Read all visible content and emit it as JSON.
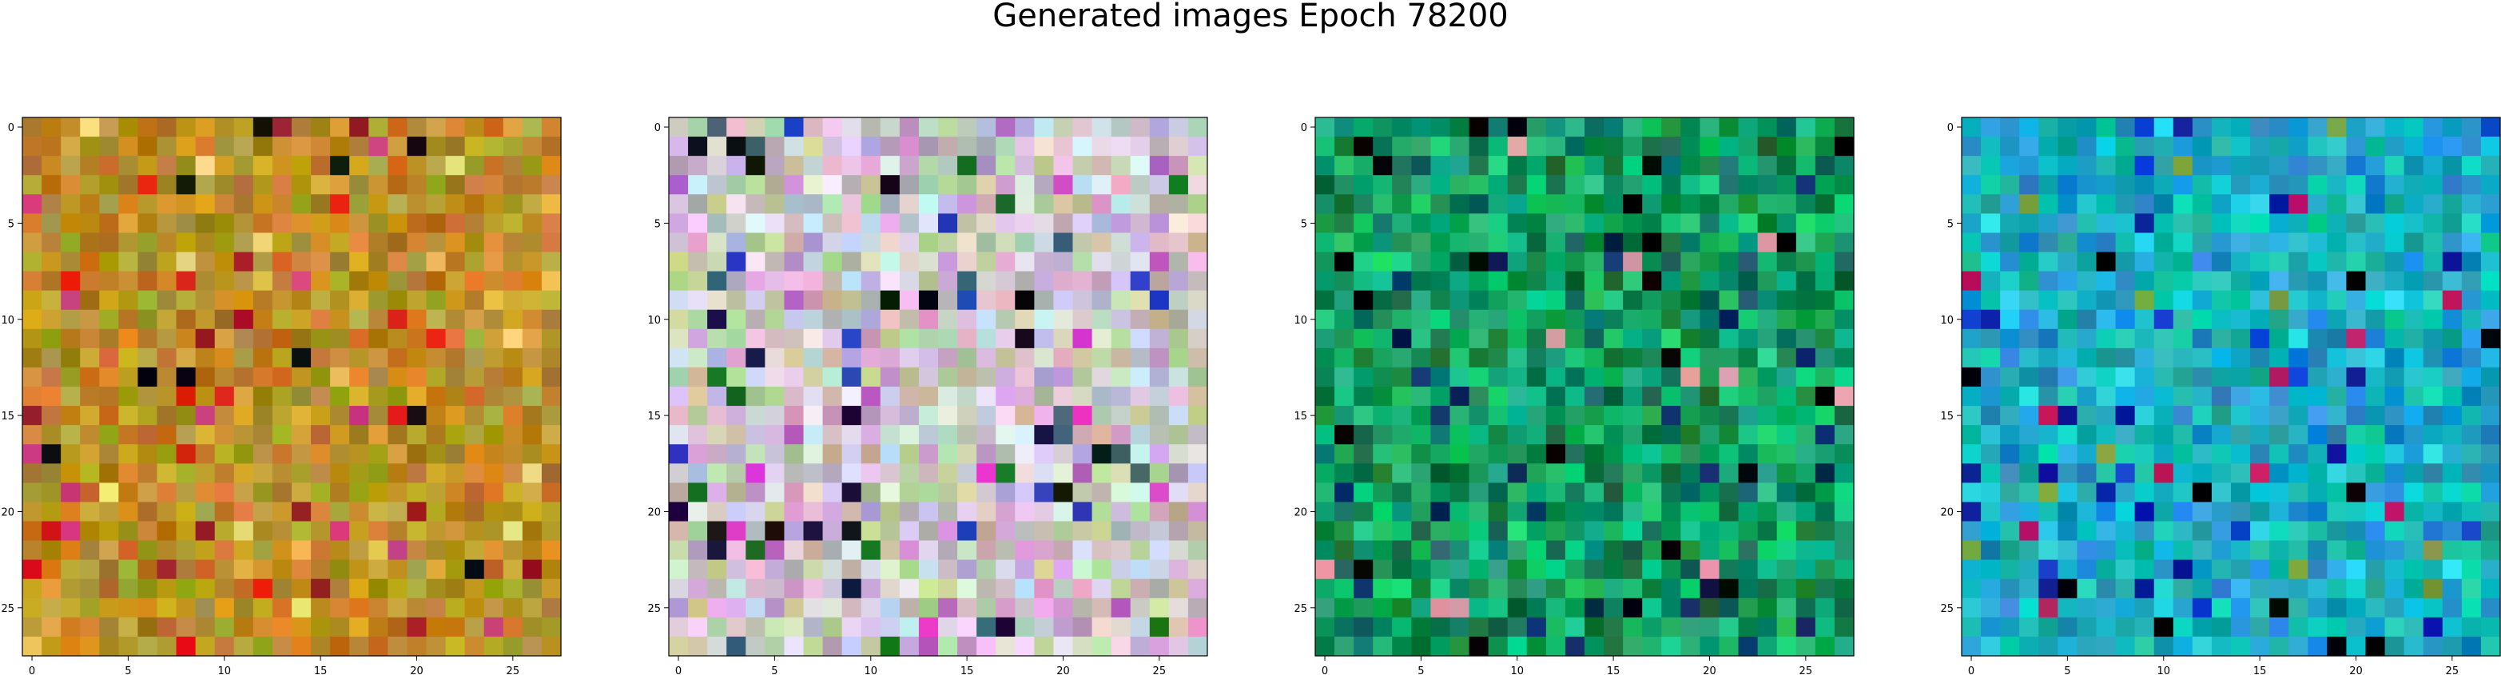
{
  "title": "Generated images Epoch 78200",
  "chart_data": [
    {
      "type": "heatmap",
      "image_size": 28,
      "color_scheme": "warm-ochre",
      "base_colors": [
        "#b0801c",
        "#c99a2e",
        "#d39230",
        "#a89020",
        "#c47a26",
        "#b7a03a"
      ],
      "accent_colors": [
        "#a01828",
        "#e8c050",
        "#8c9a18",
        "#101008",
        "#d0407a",
        "#f0e080",
        "#e01810"
      ],
      "xlim": [
        -0.5,
        27.5
      ],
      "ylim": [
        27.5,
        -0.5
      ],
      "x_ticks": [
        0,
        5,
        10,
        15,
        20,
        25
      ],
      "y_ticks": [
        0,
        5,
        10,
        15,
        20,
        25
      ],
      "x_tick_labels": [
        "0",
        "5",
        "10",
        "15",
        "20",
        "25"
      ],
      "y_tick_labels": [
        "0",
        "5",
        "10",
        "15",
        "20",
        "25"
      ]
    },
    {
      "type": "heatmap",
      "image_size": 28,
      "color_scheme": "pastel-mixed",
      "base_colors": [
        "#d8c0d8",
        "#c8d0b0",
        "#e0d8e8",
        "#c0a8c8",
        "#d0e0e8",
        "#b8c0a0"
      ],
      "accent_colors": [
        "#b060c0",
        "#1a0c40",
        "#2840c0",
        "#e040d0",
        "#1a7020",
        "#406070",
        "#101010",
        "#e0a0d0"
      ],
      "xlim": [
        -0.5,
        27.5
      ],
      "ylim": [
        27.5,
        -0.5
      ],
      "x_ticks": [
        0,
        5,
        10,
        15,
        20,
        25
      ],
      "y_ticks": [
        0,
        5,
        10,
        15,
        20,
        25
      ],
      "x_tick_labels": [
        "0",
        "5",
        "10",
        "15",
        "20",
        "25"
      ],
      "y_tick_labels": [
        "0",
        "5",
        "10",
        "15",
        "20",
        "25"
      ]
    },
    {
      "type": "heatmap",
      "image_size": 28,
      "color_scheme": "green",
      "base_colors": [
        "#0a9060",
        "#14a868",
        "#0c8048",
        "#20b878",
        "#0a7040",
        "#18c080"
      ],
      "accent_colors": [
        "#06204a",
        "#000000",
        "#20d870",
        "#2a6a6a",
        "#e0a0a8",
        "#0a3070"
      ],
      "xlim": [
        -0.5,
        27.5
      ],
      "ylim": [
        27.5,
        -0.5
      ],
      "x_ticks": [
        0,
        5,
        10,
        15,
        20,
        25
      ],
      "y_ticks": [
        0,
        5,
        10,
        15,
        20,
        25
      ],
      "x_tick_labels": [
        "0",
        "5",
        "10",
        "15",
        "20",
        "25"
      ],
      "y_tick_labels": [
        "0",
        "5",
        "10",
        "15",
        "20",
        "25"
      ]
    },
    {
      "type": "heatmap",
      "image_size": 28,
      "color_scheme": "teal-blue",
      "base_colors": [
        "#18a8b8",
        "#20c0d0",
        "#1890c0",
        "#10b0a0",
        "#2aa0d8",
        "#14c8c0"
      ],
      "accent_colors": [
        "#0818a0",
        "#000000",
        "#c01860",
        "#80a040",
        "#30e0f0",
        "#1040d0"
      ],
      "xlim": [
        -0.5,
        27.5
      ],
      "ylim": [
        27.5,
        -0.5
      ],
      "x_ticks": [
        0,
        5,
        10,
        15,
        20,
        25
      ],
      "y_ticks": [
        0,
        5,
        10,
        15,
        20,
        25
      ],
      "x_tick_labels": [
        "0",
        "5",
        "10",
        "15",
        "20",
        "25"
      ],
      "y_tick_labels": [
        "0",
        "5",
        "10",
        "15",
        "20",
        "25"
      ]
    }
  ]
}
